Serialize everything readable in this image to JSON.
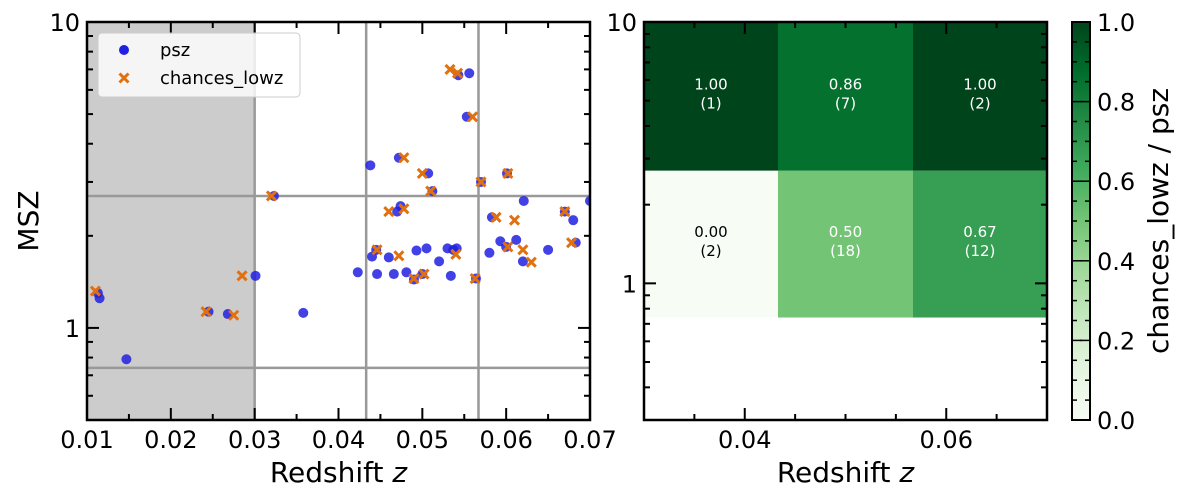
{
  "chart_data": [
    {
      "type": "scatter",
      "xlabel": "Redshift",
      "xlabel_italic": "z",
      "ylabel": "MSZ",
      "xlim": [
        0.01,
        0.07
      ],
      "ylim": [
        0.5,
        10
      ],
      "yscale": "log",
      "x_ticks": [
        "0.01",
        "0.02",
        "0.03",
        "0.04",
        "0.05",
        "0.06",
        "0.07"
      ],
      "y_ticks": [
        "1",
        "10"
      ],
      "shaded_region_x": [
        0.01,
        0.03
      ],
      "vertical_lines": [
        0.03,
        0.0433,
        0.0567
      ],
      "horizontal_lines": [
        0.74,
        2.7
      ],
      "legend_position": "top-left",
      "series": [
        {
          "name": "psz",
          "marker": "circle",
          "color": "#2020e0",
          "points": [
            [
              0.0113,
              1.3
            ],
            [
              0.0115,
              1.25
            ],
            [
              0.0147,
              0.79
            ],
            [
              0.0245,
              1.13
            ],
            [
              0.0268,
              1.11
            ],
            [
              0.0301,
              1.48
            ],
            [
              0.0323,
              2.7
            ],
            [
              0.0358,
              1.12
            ],
            [
              0.0423,
              1.52
            ],
            [
              0.0438,
              3.4
            ],
            [
              0.044,
              1.71
            ],
            [
              0.0445,
              1.8
            ],
            [
              0.0446,
              1.5
            ],
            [
              0.046,
              1.7
            ],
            [
              0.0466,
              1.5
            ],
            [
              0.047,
              2.4
            ],
            [
              0.0472,
              3.6
            ],
            [
              0.0474,
              2.5
            ],
            [
              0.0481,
              1.52
            ],
            [
              0.049,
              1.44
            ],
            [
              0.0493,
              1.79
            ],
            [
              0.05,
              1.5
            ],
            [
              0.0505,
              1.82
            ],
            [
              0.0507,
              3.2
            ],
            [
              0.0512,
              2.8
            ],
            [
              0.052,
              1.65
            ],
            [
              0.053,
              1.82
            ],
            [
              0.0534,
              1.48
            ],
            [
              0.0537,
              1.8
            ],
            [
              0.0541,
              1.82
            ],
            [
              0.0543,
              6.7
            ],
            [
              0.0553,
              4.9
            ],
            [
              0.0556,
              6.8
            ],
            [
              0.0564,
              1.45
            ],
            [
              0.057,
              3.0
            ],
            [
              0.058,
              1.76
            ],
            [
              0.0583,
              2.3
            ],
            [
              0.0593,
              1.92
            ],
            [
              0.06,
              1.84
            ],
            [
              0.0601,
              3.2
            ],
            [
              0.0612,
              1.94
            ],
            [
              0.062,
              1.65
            ],
            [
              0.0621,
              2.6
            ],
            [
              0.065,
              1.8
            ],
            [
              0.067,
              2.4
            ],
            [
              0.068,
              2.25
            ],
            [
              0.0683,
              1.9
            ],
            [
              0.07,
              2.6
            ]
          ]
        },
        {
          "name": "chances_lowz",
          "marker": "x",
          "color": "#e07010",
          "points": [
            [
              0.011,
              1.32
            ],
            [
              0.0242,
              1.13
            ],
            [
              0.0275,
              1.1
            ],
            [
              0.0285,
              1.48
            ],
            [
              0.032,
              2.7
            ],
            [
              0.0446,
              1.8
            ],
            [
              0.046,
              2.4
            ],
            [
              0.0472,
              1.72
            ],
            [
              0.0478,
              3.6
            ],
            [
              0.0478,
              2.45
            ],
            [
              0.049,
              1.45
            ],
            [
              0.05,
              3.2
            ],
            [
              0.0502,
              1.5
            ],
            [
              0.051,
              2.8
            ],
            [
              0.0533,
              7.0
            ],
            [
              0.054,
              1.74
            ],
            [
              0.0542,
              6.8
            ],
            [
              0.056,
              4.9
            ],
            [
              0.0563,
              1.45
            ],
            [
              0.057,
              3.0
            ],
            [
              0.0588,
              2.3
            ],
            [
              0.0602,
              3.2
            ],
            [
              0.0602,
              1.84
            ],
            [
              0.061,
              2.25
            ],
            [
              0.062,
              1.8
            ],
            [
              0.063,
              1.64
            ],
            [
              0.067,
              2.4
            ],
            [
              0.0678,
              1.9
            ]
          ]
        }
      ]
    },
    {
      "type": "heatmap",
      "xlabel": "Redshift",
      "xlabel_italic": "z",
      "xlim": [
        0.03,
        0.07
      ],
      "ylim": [
        0.3,
        10
      ],
      "yscale": "log",
      "x_ticks": [
        "0.04",
        "0.06"
      ],
      "y_ticks": [
        "1",
        "10"
      ],
      "x_edges": [
        0.03,
        0.0433,
        0.0567,
        0.07
      ],
      "y_edges": [
        0.74,
        2.7,
        10
      ],
      "colorbar": {
        "label": "chances_lowz / psz",
        "range": [
          0,
          1
        ],
        "ticks": [
          "0.0",
          "0.2",
          "0.4",
          "0.6",
          "0.8",
          "1.0"
        ]
      },
      "cells": [
        {
          "row": 0,
          "col": 0,
          "value": 0.0,
          "value_label": "0.00",
          "count_label": "(2)"
        },
        {
          "row": 0,
          "col": 1,
          "value": 0.5,
          "value_label": "0.50",
          "count_label": "(18)"
        },
        {
          "row": 0,
          "col": 2,
          "value": 0.67,
          "value_label": "0.67",
          "count_label": "(12)"
        },
        {
          "row": 1,
          "col": 0,
          "value": 1.0,
          "value_label": "1.00",
          "count_label": "(1)"
        },
        {
          "row": 1,
          "col": 1,
          "value": 0.86,
          "value_label": "0.86",
          "count_label": "(7)"
        },
        {
          "row": 1,
          "col": 2,
          "value": 1.0,
          "value_label": "1.00",
          "count_label": "(2)"
        }
      ]
    }
  ]
}
